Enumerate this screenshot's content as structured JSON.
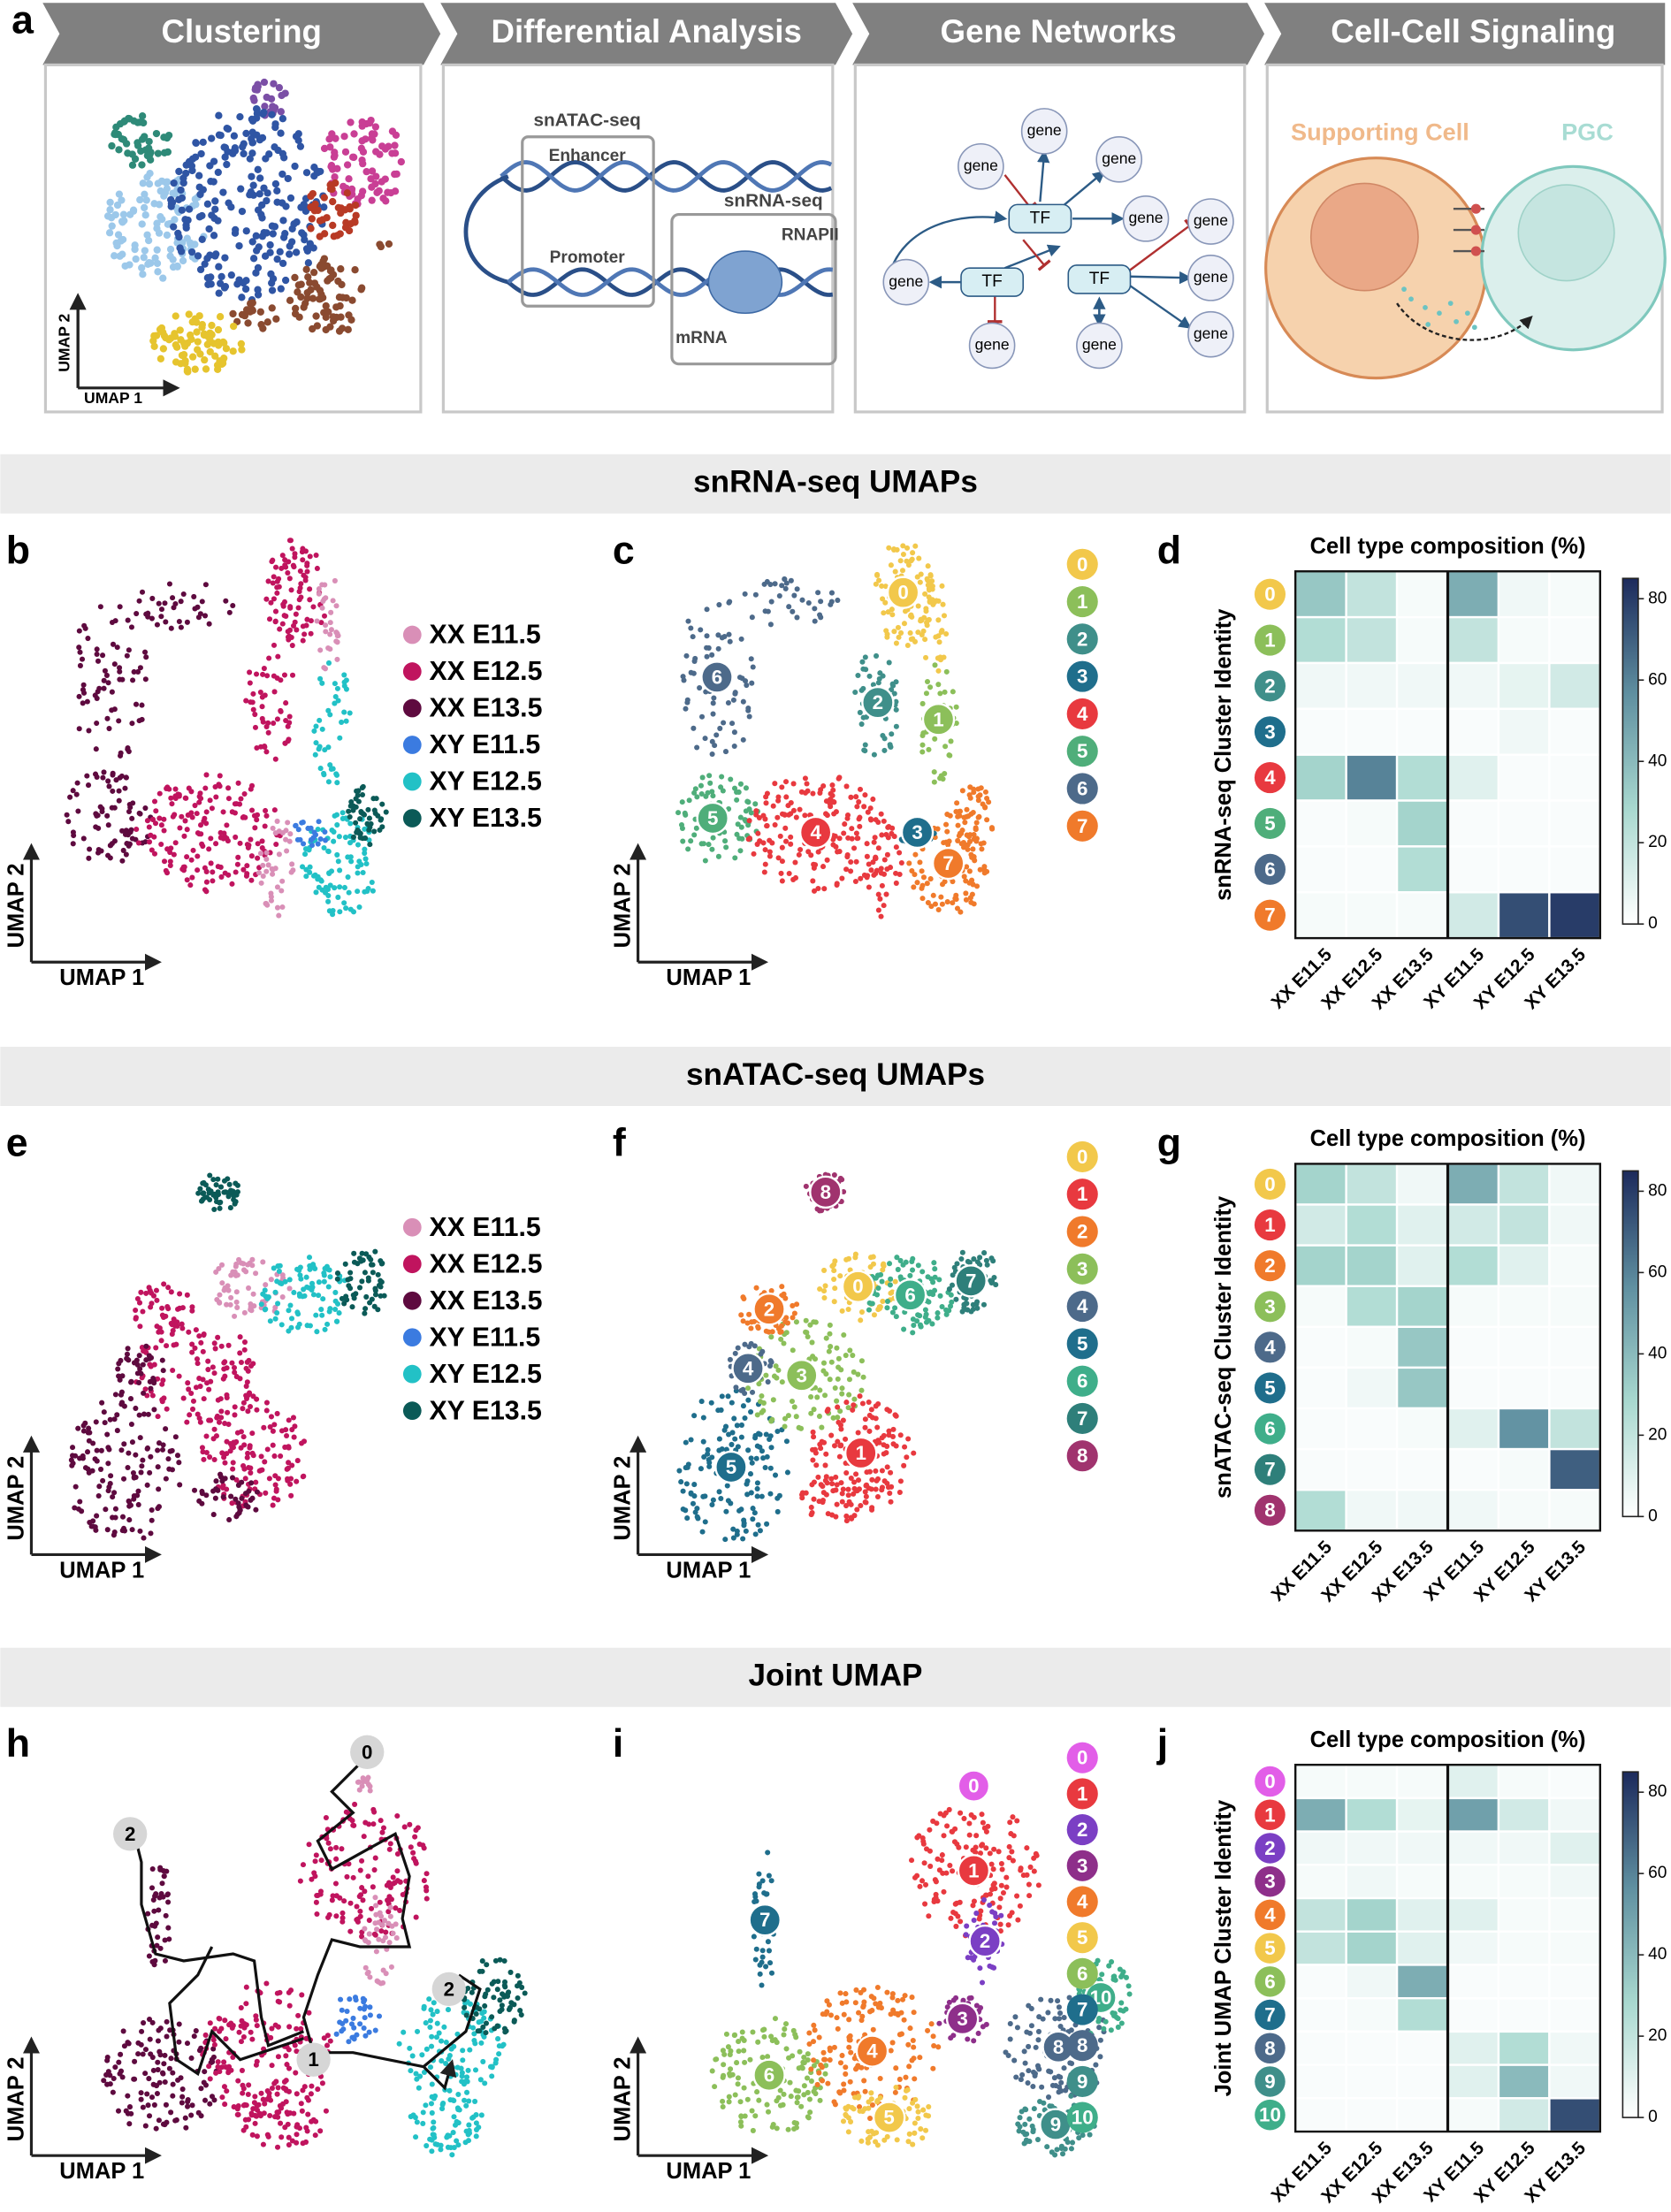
{
  "workflow": {
    "letter": "a",
    "steps": [
      "Clustering",
      "Differential Analysis",
      "Gene Networks",
      "Cell-Cell Signaling"
    ],
    "clustering": {
      "x_label": "UMAP 1",
      "y_label": "UMAP 2"
    },
    "differential": {
      "atac": "snATAC-seq",
      "enhancer": "Enhancer",
      "promoter": "Promoter",
      "rna": "snRNA-seq",
      "polymerase": "RNAPII",
      "transcript": "mRNA"
    },
    "network": {
      "genes": [
        "gene",
        "gene",
        "gene",
        "gene",
        "gene",
        "gene",
        "gene",
        "gene",
        "gene",
        "gene"
      ],
      "tfs": [
        "TF",
        "TF",
        "TF"
      ]
    },
    "signaling": {
      "sender": "Supporting Cell",
      "receiver": "PGC"
    }
  },
  "samples": [
    {
      "name": "XX E11.5",
      "color": "#d98fb7"
    },
    {
      "name": "XX E12.5",
      "color": "#c0145e"
    },
    {
      "name": "XX E13.5",
      "color": "#5e0a3f"
    },
    {
      "name": "XY E11.5",
      "color": "#3b7be0"
    },
    {
      "name": "XY E12.5",
      "color": "#22c1c6"
    },
    {
      "name": "XY E13.5",
      "color": "#0b5a57"
    }
  ],
  "rows": [
    {
      "section": "snRNA-seq UMAPs",
      "legend": true,
      "sample_umap": {
        "letter": "b",
        "x_label": "UMAP 1",
        "y_label": "UMAP 2"
      },
      "cluster_umap": {
        "letter": "c",
        "x_label": "UMAP 1",
        "y_label": "UMAP 2",
        "clusters": [
          {
            "label": "0",
            "color": "#f2c84b"
          },
          {
            "label": "1",
            "color": "#8cbf5a"
          },
          {
            "label": "2",
            "color": "#3f8f8a"
          },
          {
            "label": "3",
            "color": "#1f6e8c"
          },
          {
            "label": "4",
            "color": "#e8393f"
          },
          {
            "label": "5",
            "color": "#4fae7a"
          },
          {
            "label": "6",
            "color": "#4d6a8a"
          },
          {
            "label": "7",
            "color": "#f07a2b"
          }
        ]
      },
      "heatmap": {
        "letter": "d",
        "title": "Cell type composition (%)",
        "y_label": "snRNA-seq Cluster Identity",
        "zlim": [
          0,
          85
        ],
        "zticks": [
          0,
          20,
          40,
          60,
          80
        ],
        "colormap": [
          "#ffffff",
          "#a8d8cf",
          "#5f8fa0",
          "#1c2a5c"
        ],
        "values": [
          [
            35,
            20,
            3,
            45,
            5,
            3
          ],
          [
            25,
            20,
            3,
            20,
            3,
            2
          ],
          [
            5,
            5,
            5,
            5,
            8,
            15
          ],
          [
            2,
            2,
            2,
            2,
            5,
            2
          ],
          [
            30,
            60,
            25,
            10,
            2,
            2
          ],
          [
            2,
            3,
            30,
            2,
            2,
            2
          ],
          [
            2,
            2,
            25,
            2,
            2,
            2
          ],
          [
            3,
            3,
            3,
            15,
            75,
            80
          ]
        ]
      }
    },
    {
      "section": "snATAC-seq UMAPs",
      "legend": true,
      "sample_umap": {
        "letter": "e",
        "x_label": "UMAP 1",
        "y_label": "UMAP 2"
      },
      "cluster_umap": {
        "letter": "f",
        "x_label": "UMAP 1",
        "y_label": "UMAP 2",
        "clusters": [
          {
            "label": "0",
            "color": "#f2c84b"
          },
          {
            "label": "1",
            "color": "#e8393f"
          },
          {
            "label": "2",
            "color": "#f07a2b"
          },
          {
            "label": "3",
            "color": "#8cbf5a"
          },
          {
            "label": "4",
            "color": "#4d6a8a"
          },
          {
            "label": "5",
            "color": "#1f6e8c"
          },
          {
            "label": "6",
            "color": "#3fae8a"
          },
          {
            "label": "7",
            "color": "#2e7f7a"
          },
          {
            "label": "8",
            "color": "#a0336e"
          }
        ]
      },
      "heatmap": {
        "letter": "g",
        "title": "Cell type composition (%)",
        "y_label": "snATAC-seq Cluster Identity",
        "zlim": [
          0,
          85
        ],
        "zticks": [
          0,
          20,
          40,
          60,
          80
        ],
        "colormap": [
          "#ffffff",
          "#a8d8cf",
          "#5f8fa0",
          "#1c2a5c"
        ],
        "values": [
          [
            30,
            20,
            5,
            45,
            20,
            5
          ],
          [
            15,
            25,
            10,
            15,
            20,
            5
          ],
          [
            30,
            30,
            10,
            25,
            10,
            3
          ],
          [
            3,
            25,
            30,
            3,
            3,
            3
          ],
          [
            2,
            3,
            35,
            2,
            2,
            2
          ],
          [
            2,
            5,
            35,
            2,
            2,
            2
          ],
          [
            2,
            2,
            3,
            10,
            55,
            20
          ],
          [
            2,
            2,
            2,
            2,
            3,
            70
          ],
          [
            25,
            5,
            5,
            5,
            3,
            3
          ]
        ]
      }
    },
    {
      "section": "Joint UMAP",
      "legend": false,
      "sample_umap": {
        "letter": "h",
        "x_label": "UMAP 1",
        "y_label": "UMAP 2",
        "trajectory_labels": [
          "0",
          "2",
          "1",
          "2"
        ]
      },
      "cluster_umap": {
        "letter": "i",
        "x_label": "UMAP 1",
        "y_label": "UMAP 2",
        "clusters": [
          {
            "label": "0",
            "color": "#e25ee8"
          },
          {
            "label": "1",
            "color": "#e8393f"
          },
          {
            "label": "2",
            "color": "#7b3fc4"
          },
          {
            "label": "3",
            "color": "#8e2f8a"
          },
          {
            "label": "4",
            "color": "#f07a2b"
          },
          {
            "label": "5",
            "color": "#f2c84b"
          },
          {
            "label": "6",
            "color": "#8cbf5a"
          },
          {
            "label": "7",
            "color": "#1f6e8c"
          },
          {
            "label": "8",
            "color": "#4d6a8a"
          },
          {
            "label": "9",
            "color": "#3f8f8a"
          },
          {
            "label": "10",
            "color": "#3fae8a"
          }
        ]
      },
      "heatmap": {
        "letter": "j",
        "title": "Cell type composition (%)",
        "y_label": "Joint UMAP Cluster Identity",
        "zlim": [
          0,
          85
        ],
        "zticks": [
          0,
          20,
          40,
          60,
          80
        ],
        "colormap": [
          "#ffffff",
          "#a8d8cf",
          "#5f8fa0",
          "#1c2a5c"
        ],
        "values": [
          [
            3,
            3,
            3,
            10,
            3,
            2
          ],
          [
            45,
            25,
            8,
            50,
            15,
            5
          ],
          [
            5,
            5,
            5,
            5,
            5,
            10
          ],
          [
            3,
            5,
            3,
            3,
            3,
            5
          ],
          [
            20,
            30,
            10,
            10,
            3,
            3
          ],
          [
            20,
            30,
            10,
            5,
            3,
            3
          ],
          [
            2,
            5,
            45,
            2,
            2,
            2
          ],
          [
            2,
            3,
            25,
            2,
            2,
            2
          ],
          [
            2,
            2,
            2,
            10,
            25,
            5
          ],
          [
            2,
            2,
            2,
            10,
            40,
            5
          ],
          [
            2,
            2,
            2,
            3,
            15,
            75
          ]
        ]
      }
    }
  ]
}
